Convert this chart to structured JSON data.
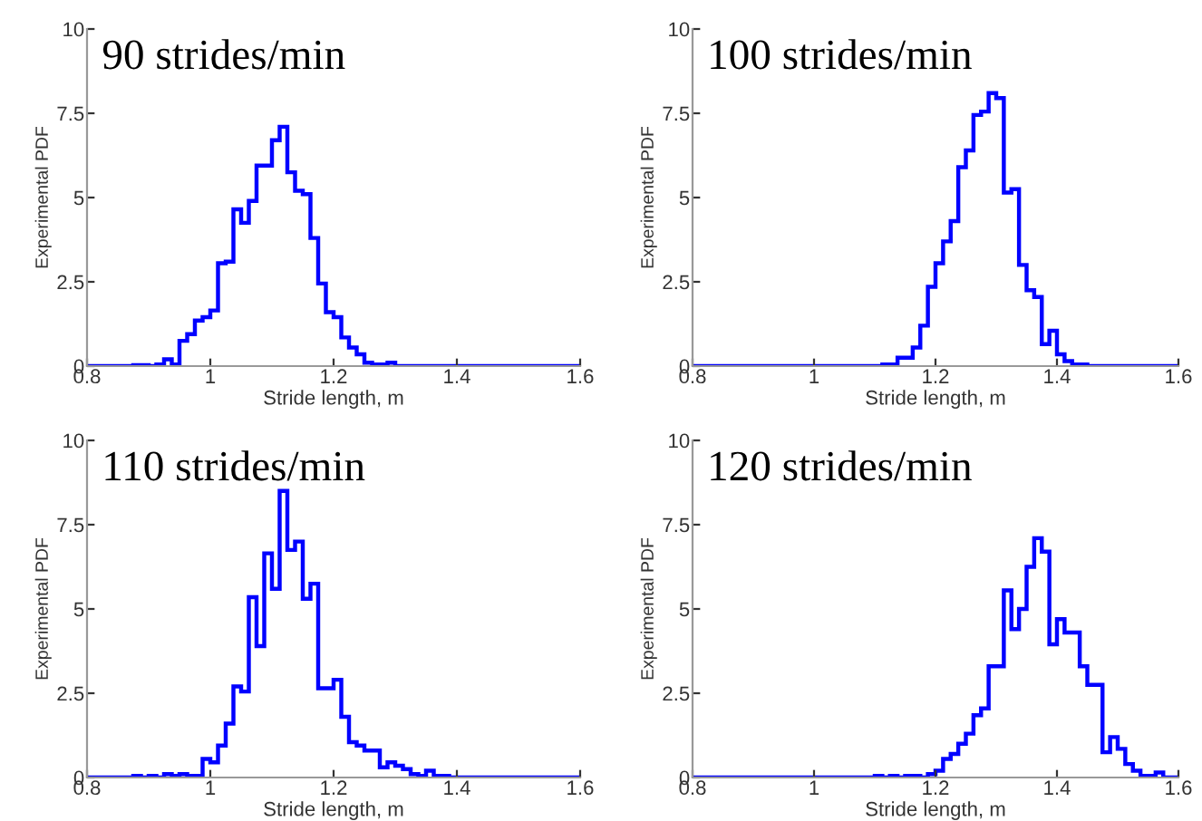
{
  "chart_data": [
    {
      "type": "histogram",
      "title": "90 strides/min",
      "xlabel": "Stride length, m",
      "ylabel": "Experimental PDF",
      "color": "#0000ff",
      "bins": [
        0.8,
        0.8125,
        0.825,
        0.8375,
        0.85,
        0.8625,
        0.875,
        0.8875,
        0.9,
        0.9125,
        0.925,
        0.9375,
        0.95,
        0.9625,
        0.975,
        0.9875,
        1,
        1.0125,
        1.025,
        1.0375,
        1.05,
        1.0625,
        1.075,
        1.0875,
        1.1,
        1.1125,
        1.125,
        1.1375,
        1.15,
        1.1625,
        1.175,
        1.1875,
        1.2,
        1.2125,
        1.225,
        1.2375,
        1.25,
        1.2625,
        1.275,
        1.2875,
        1.3,
        1.3125,
        1.325,
        1.3375,
        1.35,
        1.3625,
        1.375,
        1.3875,
        1.4,
        1.4125,
        1.425,
        1.4375,
        1.45,
        1.4625,
        1.475,
        1.4875,
        1.5,
        1.5125,
        1.525,
        1.5375,
        1.55,
        1.5625,
        1.575,
        1.5875,
        1.6
      ],
      "values": [
        0,
        0,
        0,
        0,
        0,
        0,
        0.03,
        0.03,
        0,
        0.05,
        0.2,
        0.05,
        0.75,
        0.95,
        1.35,
        1.45,
        1.65,
        3.05,
        3.1,
        4.65,
        4.25,
        4.9,
        5.95,
        5.95,
        6.7,
        7.1,
        5.75,
        5.2,
        5.1,
        3.8,
        2.45,
        1.6,
        1.45,
        0.85,
        0.55,
        0.35,
        0.1,
        0.05,
        0.05,
        0.1,
        0,
        0,
        0,
        0,
        0,
        0,
        0,
        0,
        0,
        0,
        0,
        0,
        0,
        0,
        0,
        0,
        0,
        0,
        0,
        0,
        0,
        0,
        0,
        0
      ],
      "xlim": [
        0.8,
        1.6
      ],
      "ylim": [
        0,
        10
      ],
      "xticks": [
        0.8,
        1,
        1.2,
        1.4,
        1.6
      ],
      "yticks": [
        0,
        2.5,
        5,
        7.5,
        10
      ]
    },
    {
      "type": "histogram",
      "title": "100 strides/min",
      "xlabel": "Stride length, m",
      "ylabel": "Experimental PDF",
      "color": "#0000ff",
      "bins": [
        0.8,
        0.8125,
        0.825,
        0.8375,
        0.85,
        0.8625,
        0.875,
        0.8875,
        0.9,
        0.9125,
        0.925,
        0.9375,
        0.95,
        0.9625,
        0.975,
        0.9875,
        1,
        1.0125,
        1.025,
        1.0375,
        1.05,
        1.0625,
        1.075,
        1.0875,
        1.1,
        1.1125,
        1.125,
        1.1375,
        1.15,
        1.1625,
        1.175,
        1.1875,
        1.2,
        1.2125,
        1.225,
        1.2375,
        1.25,
        1.2625,
        1.275,
        1.2875,
        1.3,
        1.3125,
        1.325,
        1.3375,
        1.35,
        1.3625,
        1.375,
        1.3875,
        1.4,
        1.4125,
        1.425,
        1.4375,
        1.45,
        1.4625,
        1.475,
        1.4875,
        1.5,
        1.5125,
        1.525,
        1.5375,
        1.55,
        1.5625,
        1.575,
        1.5875,
        1.6
      ],
      "values": [
        0,
        0,
        0,
        0,
        0,
        0,
        0,
        0,
        0,
        0,
        0,
        0,
        0,
        0,
        0,
        0,
        0,
        0,
        0,
        0,
        0,
        0,
        0,
        0,
        0,
        0.05,
        0.05,
        0.25,
        0.25,
        0.55,
        1.2,
        2.35,
        3.05,
        3.7,
        4.3,
        5.9,
        6.4,
        7.45,
        7.55,
        8.1,
        7.95,
        5.15,
        5.25,
        3,
        2.25,
        2.05,
        0.65,
        1.05,
        0.35,
        0.15,
        0.05,
        0.05,
        0,
        0,
        0,
        0,
        0,
        0,
        0,
        0,
        0,
        0,
        0,
        0
      ],
      "xlim": [
        0.8,
        1.6
      ],
      "ylim": [
        0,
        10
      ],
      "xticks": [
        0.8,
        1,
        1.2,
        1.4,
        1.6
      ],
      "yticks": [
        0,
        2.5,
        5,
        7.5,
        10
      ]
    },
    {
      "type": "histogram",
      "title": "110 strides/min",
      "xlabel": "Stride length, m",
      "ylabel": "Experimental PDF",
      "color": "#0000ff",
      "bins": [
        0.8,
        0.8125,
        0.825,
        0.8375,
        0.85,
        0.8625,
        0.875,
        0.8875,
        0.9,
        0.9125,
        0.925,
        0.9375,
        0.95,
        0.9625,
        0.975,
        0.9875,
        1,
        1.0125,
        1.025,
        1.0375,
        1.05,
        1.0625,
        1.075,
        1.0875,
        1.1,
        1.1125,
        1.125,
        1.1375,
        1.15,
        1.1625,
        1.175,
        1.1875,
        1.2,
        1.2125,
        1.225,
        1.2375,
        1.25,
        1.2625,
        1.275,
        1.2875,
        1.3,
        1.3125,
        1.325,
        1.3375,
        1.35,
        1.3625,
        1.375,
        1.3875,
        1.4,
        1.4125,
        1.425,
        1.4375,
        1.45,
        1.4625,
        1.475,
        1.4875,
        1.5,
        1.5125,
        1.525,
        1.5375,
        1.55,
        1.5625,
        1.575,
        1.5875,
        1.6
      ],
      "values": [
        0,
        0,
        0,
        0,
        0,
        0,
        0.05,
        0,
        0.05,
        0,
        0.1,
        0.05,
        0.1,
        0.05,
        0.05,
        0.55,
        0.45,
        0.95,
        1.6,
        2.7,
        2.55,
        5.35,
        3.9,
        6.65,
        5.6,
        8.5,
        6.75,
        7,
        5.3,
        5.75,
        2.65,
        2.65,
        2.9,
        1.8,
        1.05,
        0.95,
        0.8,
        0.8,
        0.3,
        0.45,
        0.35,
        0.25,
        0.1,
        0.05,
        0.2,
        0.05,
        0.05,
        0,
        0,
        0,
        0,
        0,
        0,
        0,
        0,
        0,
        0,
        0,
        0,
        0,
        0,
        0,
        0,
        0
      ],
      "xlim": [
        0.8,
        1.6
      ],
      "ylim": [
        0,
        10
      ],
      "xticks": [
        0.8,
        1,
        1.2,
        1.4,
        1.6
      ],
      "yticks": [
        0,
        2.5,
        5,
        7.5,
        10
      ]
    },
    {
      "type": "histogram",
      "title": "120 strides/min",
      "xlabel": "Stride length, m",
      "ylabel": "Experimental PDF",
      "color": "#0000ff",
      "bins": [
        0.8,
        0.8125,
        0.825,
        0.8375,
        0.85,
        0.8625,
        0.875,
        0.8875,
        0.9,
        0.9125,
        0.925,
        0.9375,
        0.95,
        0.9625,
        0.975,
        0.9875,
        1,
        1.0125,
        1.025,
        1.0375,
        1.05,
        1.0625,
        1.075,
        1.0875,
        1.1,
        1.1125,
        1.125,
        1.1375,
        1.15,
        1.1625,
        1.175,
        1.1875,
        1.2,
        1.2125,
        1.225,
        1.2375,
        1.25,
        1.2625,
        1.275,
        1.2875,
        1.3,
        1.3125,
        1.325,
        1.3375,
        1.35,
        1.3625,
        1.375,
        1.3875,
        1.4,
        1.4125,
        1.425,
        1.4375,
        1.45,
        1.4625,
        1.475,
        1.4875,
        1.5,
        1.5125,
        1.525,
        1.5375,
        1.55,
        1.5625,
        1.575,
        1.5875,
        1.6
      ],
      "values": [
        0,
        0,
        0,
        0,
        0,
        0,
        0,
        0,
        0,
        0,
        0,
        0,
        0,
        0,
        0,
        0,
        0,
        0,
        0,
        0,
        0,
        0,
        0,
        0,
        0.05,
        0,
        0.05,
        0,
        0.05,
        0.05,
        0,
        0.1,
        0.2,
        0.55,
        0.7,
        1,
        1.3,
        1.85,
        2.05,
        3.3,
        3.3,
        5.55,
        4.4,
        5,
        6.25,
        7.1,
        6.7,
        3.95,
        4.7,
        4.3,
        4.3,
        3.3,
        2.75,
        2.75,
        0.75,
        1.2,
        0.85,
        0.4,
        0.2,
        0.05,
        0.05,
        0.15,
        0,
        0
      ],
      "xlim": [
        0.8,
        1.6
      ],
      "ylim": [
        0,
        10
      ],
      "xticks": [
        0.8,
        1,
        1.2,
        1.4,
        1.6
      ],
      "yticks": [
        0,
        2.5,
        5,
        7.5,
        10
      ]
    }
  ]
}
